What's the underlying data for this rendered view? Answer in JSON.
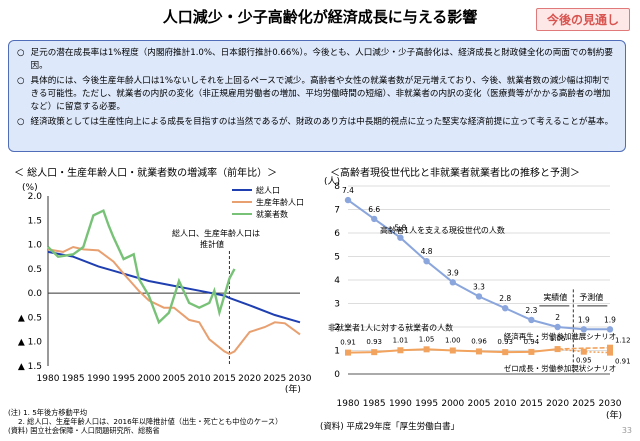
{
  "header": {
    "title": "人口減少・少子高齢化が経済成長に与える影響",
    "badge": "今後の見通し"
  },
  "summary": [
    {
      "bullet": "○",
      "text": "足元の潜在成長率は1%程度（内閣府推計1.0%、日本銀行推計0.66%）。今後とも、人口減少・少子高齢化は、経済成長と財政健全化の両面での制約要因。"
    },
    {
      "bullet": "○",
      "text": "具体的には、今後生産年齢人口は1%ないしそれを上回るペースで減少。高齢者や女性の就業者数が足元増えており、今後、就業者数の減少幅は抑制できる可能性。ただし、就業者の内訳の変化（非正規雇用労働者の増加、平均労働時間の短縮）、非就業者の内訳の変化（医療費等がかかる高齢者の増加など）に留意する必要。"
    },
    {
      "bullet": "○",
      "text": "経済政策としては生産性向上による成長を目指すのは当然であるが、財政のあり方は中長期的視点に立った堅実な経済前提に立って考えることが基本。"
    }
  ],
  "notes": {
    "n1": "(注) 1. 5年後方移動平均",
    "n2": "2. 総人口、生産年齢人口は、2016年以降推計値（出生・死亡とも中位のケース）",
    "n3": "(資料) 国立社会保障・人口問題研究所、総務省"
  },
  "source_right": "(資料) 平成29年度「厚生労働白書」",
  "page_number": "33",
  "chart_data": [
    {
      "type": "line",
      "title": "＜ 総人口・生産年齢人口・就業者数の増減率（前年比）＞",
      "ylabel": "(%)",
      "xunit": "(年)",
      "xlim": [
        1980,
        2030
      ],
      "ylim": [
        -1.5,
        2.0
      ],
      "xticks": [
        "1980",
        "1985",
        "1990",
        "1995",
        "2000",
        "2005",
        "2010",
        "2015",
        "2020",
        "2025",
        "2030"
      ],
      "yticks": [
        {
          "v": 2.0,
          "label": "2.0"
        },
        {
          "v": 1.5,
          "label": "1.5"
        },
        {
          "v": 1.0,
          "label": "1.0"
        },
        {
          "v": 0.5,
          "label": "0.5"
        },
        {
          "v": 0.0,
          "label": "0.0"
        },
        {
          "v": -0.5,
          "label": "▲ 0.5"
        },
        {
          "v": -1.0,
          "label": "▲ 1.0"
        },
        {
          "v": -1.5,
          "label": "▲ 1.5"
        }
      ],
      "divider_x": 2016,
      "annotation": "総人口、生産年齢人口は推計値",
      "series": [
        {
          "name": "総人口",
          "color": "#1f3fb0",
          "x": [
            1980,
            1985,
            1990,
            1995,
            2000,
            2005,
            2010,
            2015,
            2016,
            2020,
            2025,
            2030
          ],
          "y": [
            0.85,
            0.75,
            0.55,
            0.4,
            0.25,
            0.15,
            0.05,
            -0.05,
            -0.1,
            -0.25,
            -0.45,
            -0.6
          ]
        },
        {
          "name": "生産年齢人口",
          "color": "#e8a070",
          "x": [
            1980,
            1983,
            1985,
            1987,
            1990,
            1993,
            1995,
            1998,
            2000,
            2003,
            2005,
            2008,
            2010,
            2012,
            2015,
            2016,
            2017,
            2020,
            2023,
            2025,
            2027,
            2030
          ],
          "y": [
            0.9,
            0.85,
            0.95,
            0.9,
            0.88,
            0.65,
            0.4,
            0.05,
            -0.15,
            -0.3,
            -0.3,
            -0.55,
            -0.6,
            -0.95,
            -1.2,
            -1.25,
            -1.2,
            -0.8,
            -0.7,
            -0.6,
            -0.62,
            -0.85
          ]
        },
        {
          "name": "就業者数",
          "color": "#78c278",
          "x": [
            1980,
            1982,
            1985,
            1987,
            1989,
            1991,
            1992,
            1993,
            1995,
            1997,
            1998,
            2000,
            2002,
            2004,
            2006,
            2008,
            2010,
            2012,
            2013,
            2014,
            2016,
            2017
          ],
          "y": [
            0.95,
            0.75,
            0.8,
            0.95,
            1.6,
            1.7,
            1.4,
            1.15,
            0.7,
            0.8,
            0.3,
            -0.05,
            -0.6,
            -0.4,
            0.25,
            -0.2,
            -0.3,
            -0.2,
            0.05,
            -0.4,
            0.3,
            0.5
          ]
        }
      ]
    },
    {
      "type": "line",
      "title": "＜高齢者現役世代比と非就業者就業者比の推移と予測＞",
      "ylabel": "(人)",
      "xunit": "(年)",
      "xlim": [
        1980,
        2030
      ],
      "ylim": [
        0,
        8
      ],
      "xticks": [
        "1980",
        "1985",
        "1990",
        "1995",
        "2000",
        "2005",
        "2010",
        "2015",
        "2020",
        "2025",
        "2030"
      ],
      "yticks": [
        {
          "v": 0,
          "label": "0"
        },
        {
          "v": 1,
          "label": "1"
        },
        {
          "v": 2,
          "label": "2"
        },
        {
          "v": 3,
          "label": "3"
        },
        {
          "v": 4,
          "label": "4"
        },
        {
          "v": 5,
          "label": "5"
        },
        {
          "v": 6,
          "label": "6"
        },
        {
          "v": 7,
          "label": "7"
        },
        {
          "v": 8,
          "label": "8"
        }
      ],
      "divider_x": 2023,
      "period_labels": [
        "実績値",
        "予測値"
      ],
      "series": [
        {
          "name": "高齢者1人を支える現役世代の人数",
          "color": "#8aa6dc",
          "x": [
            1980,
            1985,
            1990,
            1995,
            2000,
            2005,
            2010,
            2015,
            2020,
            2025,
            2030
          ],
          "y": [
            7.4,
            6.6,
            5.8,
            4.8,
            3.9,
            3.3,
            2.8,
            2.3,
            2.0,
            1.9,
            1.9
          ],
          "labels": [
            "7.4",
            "6.6",
            "5.8",
            "4.8",
            "3.9",
            "3.3",
            "2.8",
            "2.3",
            "2",
            "1.9",
            "1.9"
          ]
        },
        {
          "name": "非就業者1人に対する就業者の人数",
          "color": "#f2a35e",
          "x": [
            1980,
            1985,
            1990,
            1995,
            2000,
            2005,
            2010,
            2015,
            2020
          ],
          "y": [
            0.91,
            0.93,
            1.01,
            1.05,
            1.0,
            0.96,
            0.93,
            0.94,
            1.06
          ],
          "labels": [
            "0.91",
            "0.93",
            "1.01",
            "1.05",
            "1.00",
            "0.96",
            "0.93",
            "0.94",
            "1.06"
          ]
        },
        {
          "name": "経済再生・労働参加進展シナリオ",
          "color": "#f2a35e",
          "x": [
            2020,
            2025,
            2030
          ],
          "y": [
            1.06,
            1.1,
            1.12
          ],
          "labels": [
            "",
            "",
            "1.12"
          ]
        },
        {
          "name": "ゼロ成長・労働参加現状シナリオ",
          "color": "#f2a35e",
          "x": [
            2020,
            2025,
            2030
          ],
          "y": [
            1.06,
            0.95,
            0.91
          ],
          "labels": [
            "",
            "0.95",
            "0.91"
          ]
        }
      ]
    }
  ]
}
